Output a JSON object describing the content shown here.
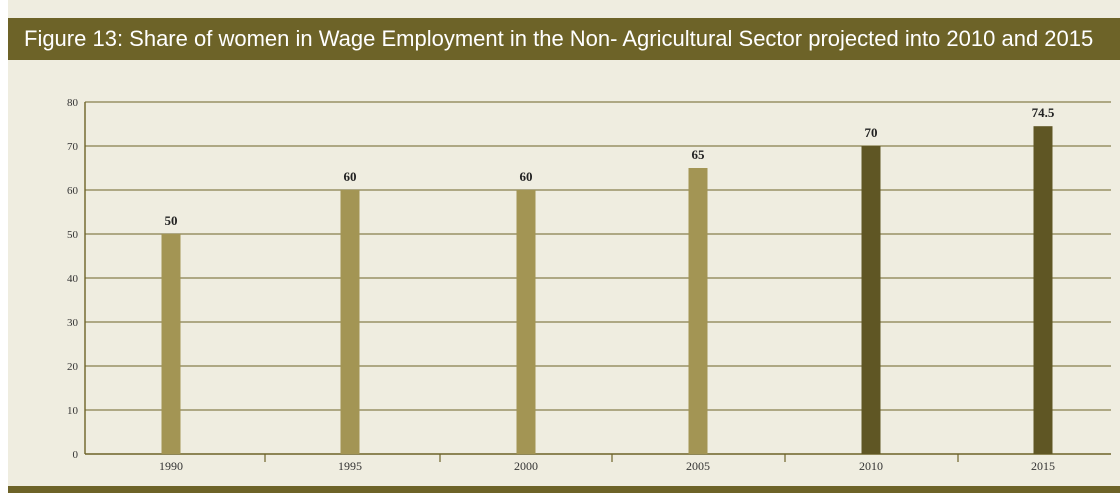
{
  "figure": {
    "title": "Figure 13: Share of women in Wage Employment in the Non- Agricultural Sector projected into 2010 and 2015"
  },
  "colors": {
    "header": "#6d6328",
    "background": "#efede0",
    "bar_actual": "#a39554",
    "bar_projected": "#5f5624",
    "grid": "#6d6328",
    "text": "#222222"
  },
  "chart_data": {
    "type": "bar",
    "title": "Figure 13: Share of women in Wage Employment in the Non- Agricultural Sector projected into 2010 and 2015",
    "xlabel": "",
    "ylabel": "",
    "categories": [
      "1990",
      "1995",
      "2000",
      "2005",
      "2010",
      "2015"
    ],
    "values": [
      50,
      60,
      60,
      65,
      70,
      74.5
    ],
    "data_labels": [
      "50",
      "60",
      "60",
      "65",
      "70",
      "74.5"
    ],
    "projected": [
      false,
      false,
      false,
      false,
      true,
      true
    ],
    "ylim": [
      0,
      80
    ],
    "yticks": [
      "0",
      "10",
      "20",
      "30",
      "40",
      "50",
      "60",
      "70",
      "80"
    ],
    "grid": true,
    "legend": "none"
  }
}
